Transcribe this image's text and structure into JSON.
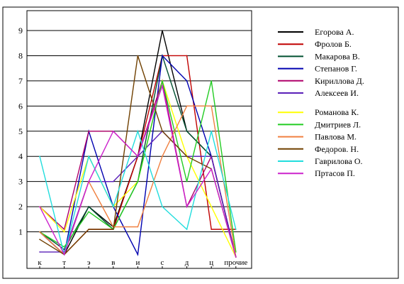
{
  "chart_data": {
    "type": "line",
    "categories": [
      "к",
      "т",
      "э",
      "в",
      "и",
      "с",
      "д",
      "ц",
      "прочие"
    ],
    "ylim": [
      0,
      9
    ],
    "yticks": [
      1,
      2,
      3,
      4,
      5,
      6,
      7,
      8,
      9
    ],
    "grid": "horizontal",
    "legend_position": "right",
    "series": [
      {
        "name": "Егорова А.",
        "color": "#000000",
        "values": [
          1,
          0.1,
          2,
          1.2,
          4,
          9,
          5,
          4,
          0
        ]
      },
      {
        "name": "Фролов Б.",
        "color": "#c00000",
        "values": [
          1,
          0.1,
          1.1,
          1.1,
          4,
          8,
          8,
          1.1,
          1.1
        ]
      },
      {
        "name": "Макарова В.",
        "color": "#005030",
        "values": [
          1,
          0.3,
          2,
          1.1,
          3,
          8,
          5,
          4,
          0
        ]
      },
      {
        "name": "Степанов Г.",
        "color": "#0000b0",
        "values": [
          1,
          0.1,
          5,
          2,
          0.1,
          8,
          7,
          4,
          0
        ]
      },
      {
        "name": "Кириллова Д.",
        "color": "#b0006a",
        "values": [
          2,
          1.1,
          5,
          5,
          4,
          7,
          2,
          4,
          0
        ]
      },
      {
        "name": "Алексеев И.",
        "color": "#5a20b8",
        "values": [
          0.2,
          0.2,
          3,
          3,
          4,
          5,
          4,
          4,
          0
        ]
      },
      {
        "name": "Романова К.",
        "color": "#ffff00",
        "values": [
          2,
          1,
          4,
          2,
          3,
          7,
          4,
          2,
          0
        ]
      },
      {
        "name": "Дмитриев Л.",
        "color": "#22cc22",
        "values": [
          1,
          0.4,
          1.8,
          1.1,
          3,
          7,
          3,
          7,
          0.2
        ]
      },
      {
        "name": "Павлова М.",
        "color": "#f08040",
        "values": [
          1,
          0.1,
          3,
          1.2,
          1.2,
          4,
          6,
          6,
          0
        ]
      },
      {
        "name": "Федоров. Н.",
        "color": "#704000",
        "values": [
          0.7,
          0.1,
          1.1,
          1.1,
          8,
          5,
          4,
          3.5,
          0
        ]
      },
      {
        "name": "Гаврилова О.",
        "color": "#22dddd",
        "values": [
          4,
          0.1,
          4,
          2,
          5,
          2,
          1.1,
          5,
          1.1
        ]
      },
      {
        "name": "Пртасов П.",
        "color": "#cc22cc",
        "values": [
          2,
          0.1,
          3,
          5,
          4,
          6.8,
          2,
          3.5,
          0
        ]
      }
    ]
  }
}
